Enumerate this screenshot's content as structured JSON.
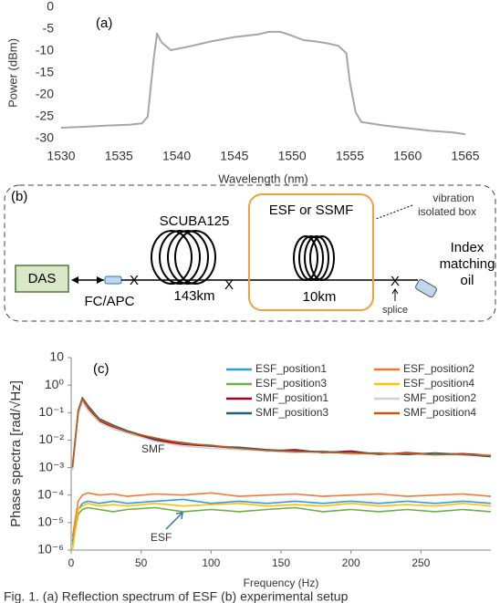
{
  "chart_data": [
    {
      "type": "line",
      "annotation": "(a)",
      "x_label": "Wavelength (nm)",
      "y_label": "Power (dBm)",
      "x": [
        1530,
        1532,
        1534,
        1536,
        1537,
        1537.5,
        1538,
        1538.3,
        1538.7,
        1539.5,
        1541,
        1543,
        1545,
        1547,
        1548,
        1549,
        1550,
        1551,
        1552,
        1553,
        1554,
        1554.7,
        1555,
        1555.5,
        1556,
        1558,
        1560,
        1562,
        1564,
        1565
      ],
      "series": [
        {
          "color": "#a6a6a6",
          "values": [
            -27.5,
            -27.3,
            -27,
            -26.8,
            -26.5,
            -25,
            -12,
            -6,
            -8,
            -9.8,
            -9,
            -7.8,
            -6.8,
            -6.2,
            -5.6,
            -5.6,
            -6.5,
            -7.5,
            -7.8,
            -8.2,
            -8.8,
            -10.5,
            -17,
            -24,
            -26.2,
            -27,
            -27.6,
            -28.2,
            -28.6,
            -29
          ]
        }
      ],
      "xlim": [
        1530,
        1565
      ],
      "xticks": [
        1530,
        1535,
        1540,
        1545,
        1550,
        1555,
        1560,
        1565
      ],
      "ylim": [
        -30,
        0
      ],
      "yticks": [
        0,
        -5,
        -10,
        -15,
        -20,
        -25,
        -30
      ],
      "log_y": false
    },
    {
      "type": "line",
      "annotation": "(c)",
      "x_label": "Frequency (Hz)",
      "y_label": "Phase spectra [rad/√Hz]",
      "annotations": [
        "SMF",
        "ESF"
      ],
      "x": [
        1,
        5,
        8,
        12,
        20,
        30,
        40,
        60,
        80,
        100,
        120,
        140,
        160,
        180,
        200,
        220,
        240,
        260,
        280,
        300
      ],
      "series": [
        {
          "name": "ESF_position1",
          "color": "#2e9fd9",
          "values": [
            2e-06,
            3e-05,
            5e-05,
            6e-05,
            5e-05,
            6e-05,
            5e-05,
            6e-05,
            7e-05,
            5e-05,
            6e-05,
            5e-05,
            6e-05,
            5e-05,
            6e-05,
            5e-05,
            6e-05,
            5e-05,
            6e-05,
            5e-05
          ]
        },
        {
          "name": "ESF_position2",
          "color": "#ed7d31",
          "values": [
            3e-06,
            6e-05,
            0.0001,
            0.00012,
            0.0001,
            0.00011,
            9e-05,
            0.00011,
            0.0001,
            0.00012,
            9e-05,
            0.0001,
            0.00011,
            9e-05,
            0.0001,
            0.00011,
            9e-05,
            0.0001,
            0.00011,
            9e-05
          ]
        },
        {
          "name": "ESF_position3",
          "color": "#70ad47",
          "values": [
            1.5e-06,
            2e-05,
            3e-05,
            3.5e-05,
            3e-05,
            2.5e-05,
            3e-05,
            3.5e-05,
            2.5e-05,
            3e-05,
            2.5e-05,
            3e-05,
            3.5e-05,
            2.5e-05,
            3e-05,
            2.5e-05,
            3e-05,
            2.5e-05,
            3e-05,
            2.5e-05
          ]
        },
        {
          "name": "ESF_position4",
          "color": "#ffc000",
          "values": [
            1e-06,
            3e-05,
            4e-05,
            5e-05,
            4e-05,
            4.5e-05,
            4e-05,
            5e-05,
            4e-05,
            4.5e-05,
            5e-05,
            4e-05,
            4.5e-05,
            4e-05,
            5e-05,
            4e-05,
            4.5e-05,
            4e-05,
            5e-05,
            4e-05
          ]
        },
        {
          "name": "SMF_position1",
          "color": "#a50021",
          "values": [
            0.001,
            0.1,
            0.3,
            0.15,
            0.05,
            0.03,
            0.02,
            0.01,
            0.007,
            0.006,
            0.005,
            0.004,
            0.0045,
            0.0035,
            0.004,
            0.003,
            0.0035,
            0.003,
            0.0032,
            0.0028
          ]
        },
        {
          "name": "SMF_position2",
          "color": "#d0d0d0",
          "values": [
            0.0008,
            0.08,
            0.25,
            0.12,
            0.045,
            0.025,
            0.018,
            0.009,
            0.006,
            0.005,
            0.0045,
            0.004,
            0.0035,
            0.004,
            0.003,
            0.0035,
            0.003,
            0.0032,
            0.0028,
            0.003
          ]
        },
        {
          "name": "SMF_position3",
          "color": "#1f5f7a",
          "values": [
            0.0012,
            0.12,
            0.35,
            0.18,
            0.06,
            0.035,
            0.022,
            0.011,
            0.008,
            0.006,
            0.0055,
            0.0045,
            0.004,
            0.0038,
            0.0035,
            0.0033,
            0.003,
            0.0034,
            0.003,
            0.0025
          ]
        },
        {
          "name": "SMF_position4",
          "color": "#c55a11",
          "values": [
            0.001,
            0.11,
            0.32,
            0.16,
            0.055,
            0.032,
            0.02,
            0.012,
            0.0075,
            0.0065,
            0.005,
            0.0042,
            0.0038,
            0.0036,
            0.0034,
            0.0031,
            0.0033,
            0.0029,
            0.0031,
            0.0027
          ]
        }
      ],
      "xlim": [
        0,
        300
      ],
      "xticks": [
        0,
        50,
        100,
        150,
        200,
        250
      ],
      "ylim": [
        1e-06,
        10
      ],
      "log_y": true,
      "yticks": [
        {
          "value": 10,
          "label": "10"
        },
        {
          "value": 1,
          "label": "10⁰"
        },
        {
          "value": 0.1,
          "label": "10⁻¹"
        },
        {
          "value": 0.01,
          "label": "10⁻²"
        },
        {
          "value": 0.001,
          "label": "10⁻³"
        },
        {
          "value": 0.0001,
          "label": "10⁻⁴"
        },
        {
          "value": 1e-05,
          "label": "10⁻⁵"
        },
        {
          "value": 1e-06,
          "label": "10⁻⁶"
        }
      ]
    }
  ],
  "diagram": {
    "panel_label": "(b)",
    "das": "DAS",
    "connector": "FC/APC",
    "coil1_label": "SCUBA125",
    "coil1_length": "143km",
    "box_label": "ESF or SSMF",
    "coil2_length": "10km",
    "splice": "splice",
    "box_note": [
      "vibration",
      "isolated box"
    ],
    "end_label": [
      "Index",
      "matching",
      "oil"
    ],
    "splice_mark": "X"
  },
  "caption": "Fig. 1. (a) Reflection spectrum of ESF (b) experimental setup"
}
